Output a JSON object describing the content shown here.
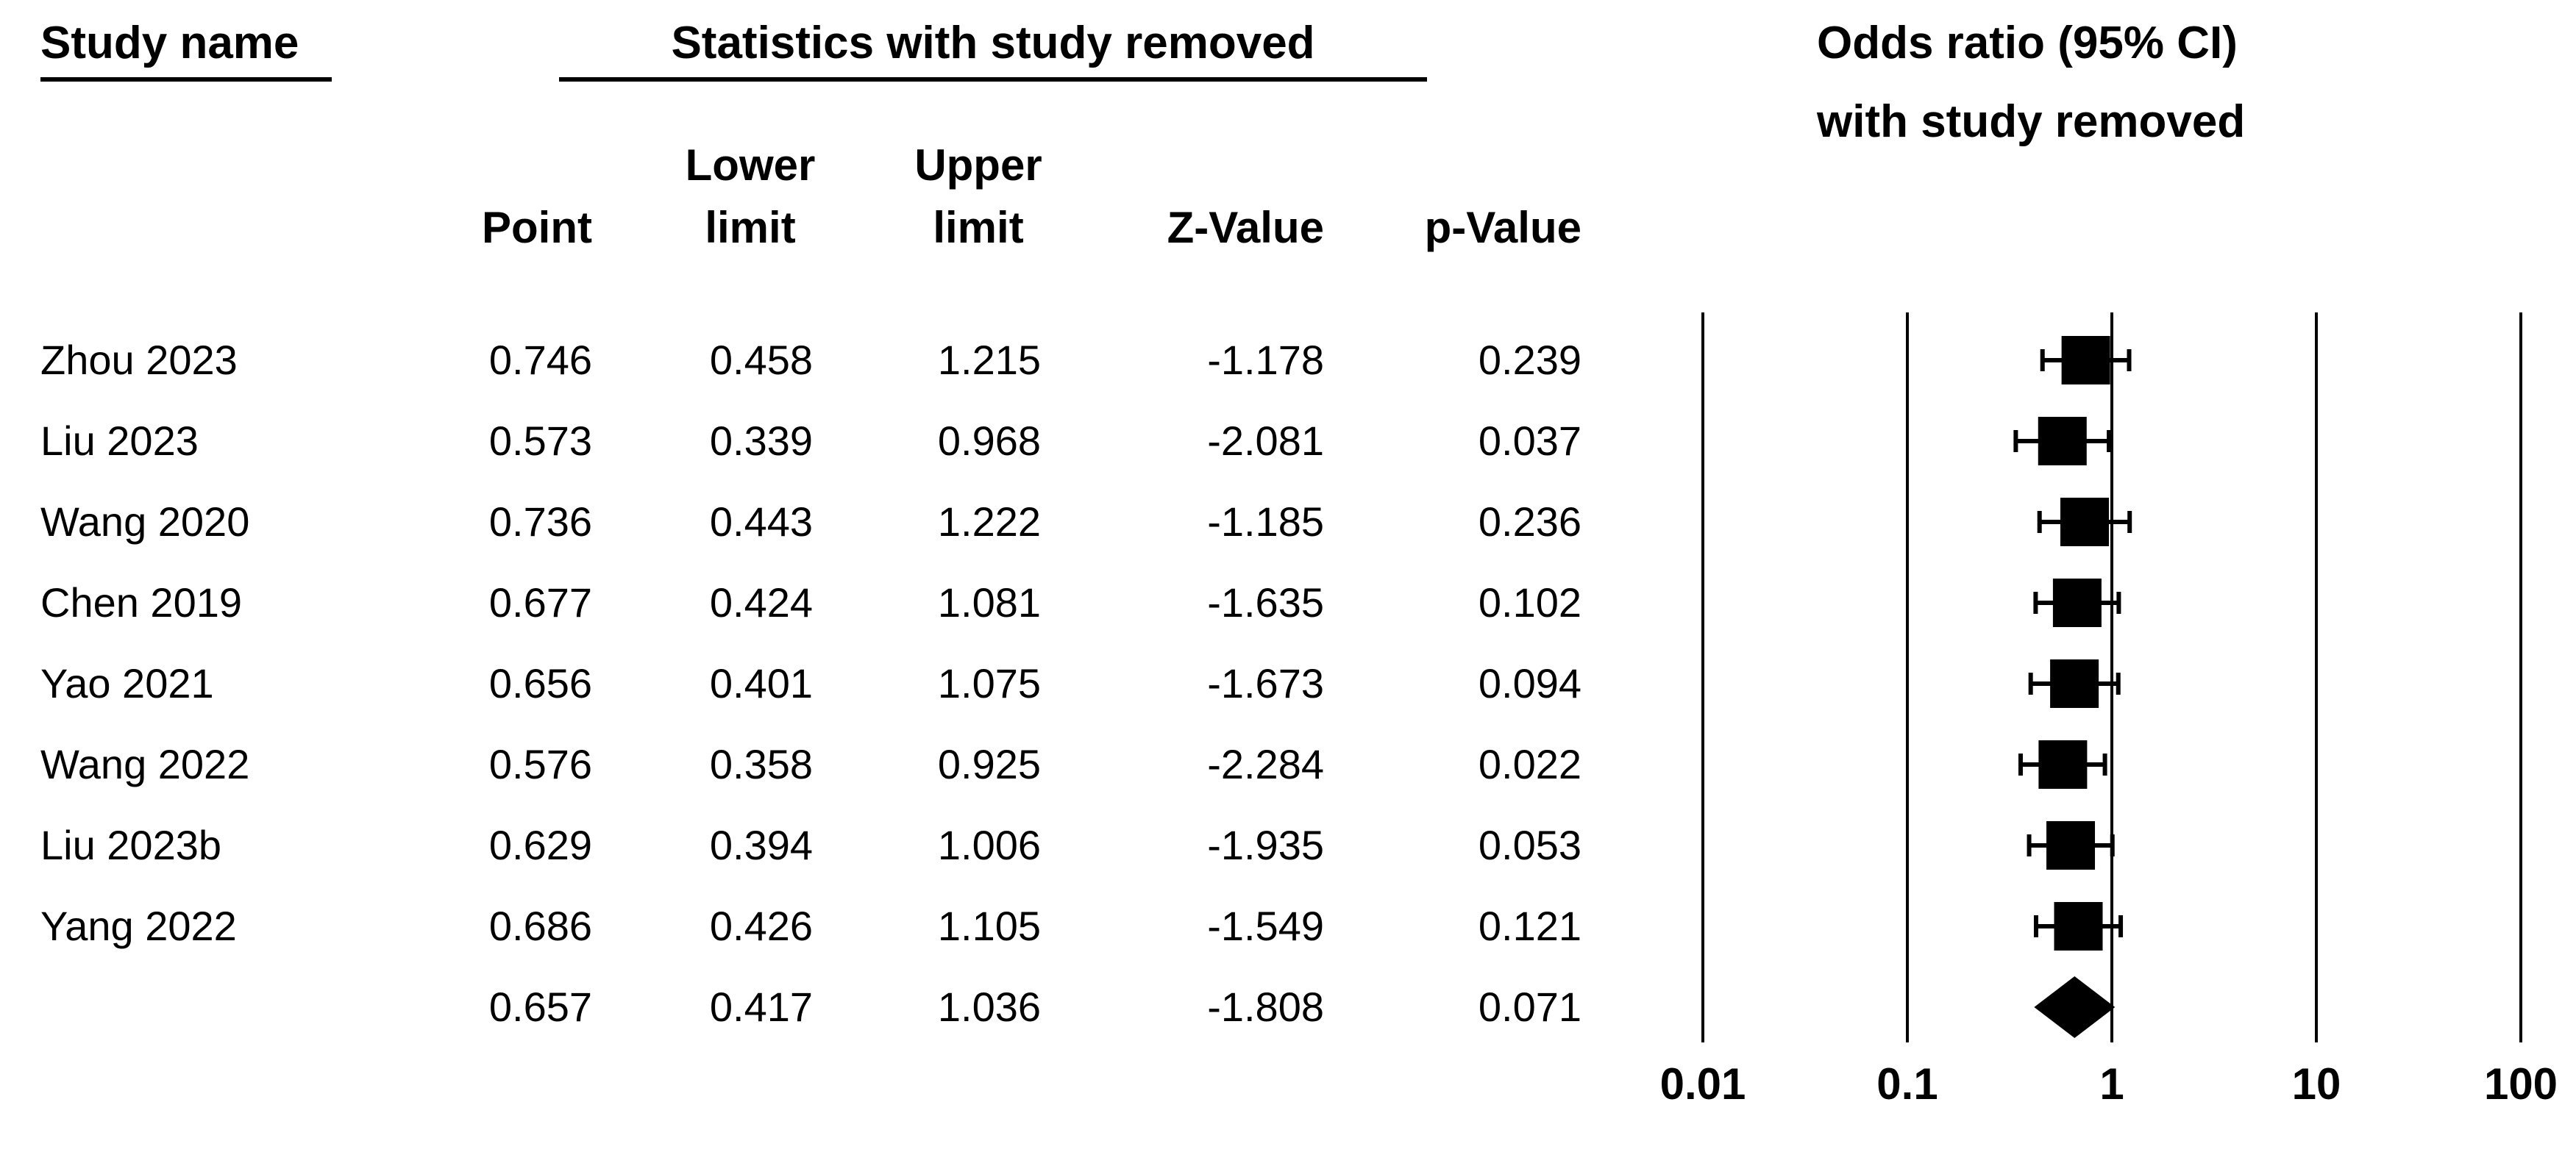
{
  "header": {
    "study_col": "Study name",
    "stats_group": "Statistics with study removed",
    "plot_title_line1": "Odds ratio (95% CI)",
    "plot_title_line2": "with study removed",
    "columns": {
      "point": "Point",
      "lower_line1": "Lower",
      "lower_line2": "limit",
      "upper_line1": "Upper",
      "upper_line2": "limit",
      "z": "Z-Value",
      "p": "p-Value"
    }
  },
  "colors": {
    "marker": "#000000",
    "gridline": "#000000",
    "text": "#000000",
    "background": "#ffffff"
  },
  "chart_data": {
    "type": "forest",
    "scale": "log10",
    "xlim": [
      0.01,
      100
    ],
    "axis_ticks": [
      0.01,
      0.1,
      1,
      10,
      100
    ],
    "axis_tick_labels": [
      "0.01",
      "0.1",
      "1",
      "10",
      "100"
    ],
    "grid": true,
    "columns": [
      "study",
      "point",
      "lower",
      "upper",
      "z",
      "p"
    ],
    "rows": [
      {
        "study": "Zhou 2023",
        "point": "0.746",
        "lower": "0.458",
        "upper": "1.215",
        "z": "-1.178",
        "p": "0.239",
        "summary": false
      },
      {
        "study": "Liu 2023",
        "point": "0.573",
        "lower": "0.339",
        "upper": "0.968",
        "z": "-2.081",
        "p": "0.037",
        "summary": false
      },
      {
        "study": "Wang 2020",
        "point": "0.736",
        "lower": "0.443",
        "upper": "1.222",
        "z": "-1.185",
        "p": "0.236",
        "summary": false
      },
      {
        "study": "Chen 2019",
        "point": "0.677",
        "lower": "0.424",
        "upper": "1.081",
        "z": "-1.635",
        "p": "0.102",
        "summary": false
      },
      {
        "study": "Yao 2021",
        "point": "0.656",
        "lower": "0.401",
        "upper": "1.075",
        "z": "-1.673",
        "p": "0.094",
        "summary": false
      },
      {
        "study": "Wang 2022",
        "point": "0.576",
        "lower": "0.358",
        "upper": "0.925",
        "z": "-2.284",
        "p": "0.022",
        "summary": false
      },
      {
        "study": "Liu 2023b",
        "point": "0.629",
        "lower": "0.394",
        "upper": "1.006",
        "z": "-1.935",
        "p": "0.053",
        "summary": false
      },
      {
        "study": "Yang 2022",
        "point": "0.686",
        "lower": "0.426",
        "upper": "1.105",
        "z": "-1.549",
        "p": "0.121",
        "summary": false
      },
      {
        "study": "",
        "point": "0.657",
        "lower": "0.417",
        "upper": "1.036",
        "z": "-1.808",
        "p": "0.071",
        "summary": true
      }
    ]
  }
}
